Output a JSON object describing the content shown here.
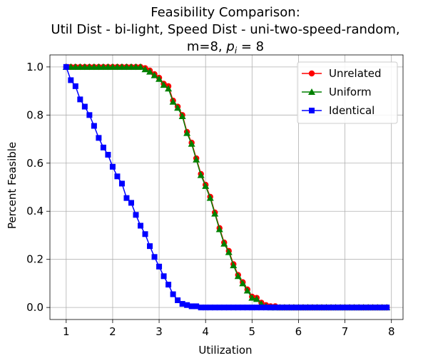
{
  "chart_data": {
    "type": "line",
    "title_lines": [
      "Feasibility Comparison:",
      "Util Dist - bi-light, Speed Dist - uni-two-speed-random,"
    ],
    "title_line3_prefix": "m=8, ",
    "title_line3_italic": "p",
    "title_line3_sub": "i",
    "title_line3_suffix": " = 8",
    "xlabel": "Utilization",
    "ylabel": "Percent Feasible",
    "xlim": [
      0.65,
      8.25
    ],
    "ylim": [
      -0.05,
      1.05
    ],
    "xticks": [
      1,
      2,
      3,
      4,
      5,
      6,
      7,
      8
    ],
    "yticks": [
      0.0,
      0.2,
      0.4,
      0.6,
      0.8,
      1.0
    ],
    "ytick_labels": [
      "0.0",
      "0.2",
      "0.4",
      "0.6",
      "0.8",
      "1.0"
    ],
    "grid": true,
    "legend_position": "top-right",
    "x": [
      1.0,
      1.1,
      1.2,
      1.3,
      1.4,
      1.5,
      1.6,
      1.7,
      1.8,
      1.9,
      2.0,
      2.1,
      2.2,
      2.3,
      2.4,
      2.5,
      2.6,
      2.7,
      2.8,
      2.9,
      3.0,
      3.1,
      3.2,
      3.3,
      3.4,
      3.5,
      3.6,
      3.7,
      3.8,
      3.9,
      4.0,
      4.1,
      4.2,
      4.3,
      4.4,
      4.5,
      4.6,
      4.7,
      4.8,
      4.9,
      5.0,
      5.1,
      5.2,
      5.3,
      5.4,
      5.5,
      5.6,
      5.7,
      5.8,
      5.9,
      6.0,
      6.1,
      6.2,
      6.3,
      6.4,
      6.5,
      6.6,
      6.7,
      6.8,
      6.9,
      7.0,
      7.1,
      7.2,
      7.3,
      7.4,
      7.5,
      7.6,
      7.7,
      7.8,
      7.9
    ],
    "series": [
      {
        "name": "Unrelated",
        "color": "#ff0000",
        "marker": "circle",
        "values": [
          1.0,
          1.0,
          1.0,
          1.0,
          1.0,
          1.0,
          1.0,
          1.0,
          1.0,
          1.0,
          1.0,
          1.0,
          1.0,
          1.0,
          1.0,
          1.0,
          1.0,
          0.995,
          0.985,
          0.97,
          0.955,
          0.93,
          0.92,
          0.86,
          0.835,
          0.8,
          0.73,
          0.685,
          0.62,
          0.555,
          0.51,
          0.46,
          0.395,
          0.33,
          0.27,
          0.235,
          0.18,
          0.135,
          0.105,
          0.075,
          0.045,
          0.04,
          0.02,
          0.01,
          0.005,
          0.005,
          0.0,
          0.0,
          0.0,
          0.0,
          0.0,
          0.0,
          0.0,
          0.0,
          0.0,
          0.0,
          0.0,
          0.0,
          0.0,
          0.0,
          0.0,
          0.0,
          0.0,
          0.0,
          0.0,
          0.0,
          0.0,
          0.0,
          0.0,
          0.0
        ]
      },
      {
        "name": "Uniform",
        "color": "#008000",
        "marker": "triangle",
        "values": [
          1.0,
          1.0,
          1.0,
          1.0,
          1.0,
          1.0,
          1.0,
          1.0,
          1.0,
          1.0,
          1.0,
          1.0,
          1.0,
          1.0,
          1.0,
          1.0,
          1.0,
          0.99,
          0.98,
          0.965,
          0.95,
          0.925,
          0.91,
          0.855,
          0.83,
          0.795,
          0.725,
          0.68,
          0.615,
          0.55,
          0.505,
          0.455,
          0.39,
          0.325,
          0.265,
          0.23,
          0.175,
          0.13,
          0.1,
          0.07,
          0.04,
          0.035,
          0.015,
          0.005,
          0.0,
          0.0,
          0.0,
          0.0,
          0.0,
          0.0,
          0.0,
          0.0,
          0.0,
          0.0,
          0.0,
          0.0,
          0.0,
          0.0,
          0.0,
          0.0,
          0.0,
          0.0,
          0.0,
          0.0,
          0.0,
          0.0,
          0.0,
          0.0,
          0.0,
          0.0
        ]
      },
      {
        "name": "Identical",
        "color": "#0000ff",
        "marker": "square",
        "values": [
          1.0,
          0.945,
          0.92,
          0.865,
          0.835,
          0.8,
          0.755,
          0.705,
          0.665,
          0.635,
          0.585,
          0.545,
          0.515,
          0.455,
          0.435,
          0.385,
          0.34,
          0.305,
          0.255,
          0.21,
          0.17,
          0.13,
          0.095,
          0.055,
          0.03,
          0.015,
          0.01,
          0.005,
          0.005,
          0.0,
          0.0,
          0.0,
          0.0,
          0.0,
          0.0,
          0.0,
          0.0,
          0.0,
          0.0,
          0.0,
          0.0,
          0.0,
          0.0,
          0.0,
          0.0,
          0.0,
          0.0,
          0.0,
          0.0,
          0.0,
          0.0,
          0.0,
          0.0,
          0.0,
          0.0,
          0.0,
          0.0,
          0.0,
          0.0,
          0.0,
          0.0,
          0.0,
          0.0,
          0.0,
          0.0,
          0.0,
          0.0,
          0.0,
          0.0,
          0.0
        ]
      }
    ]
  }
}
